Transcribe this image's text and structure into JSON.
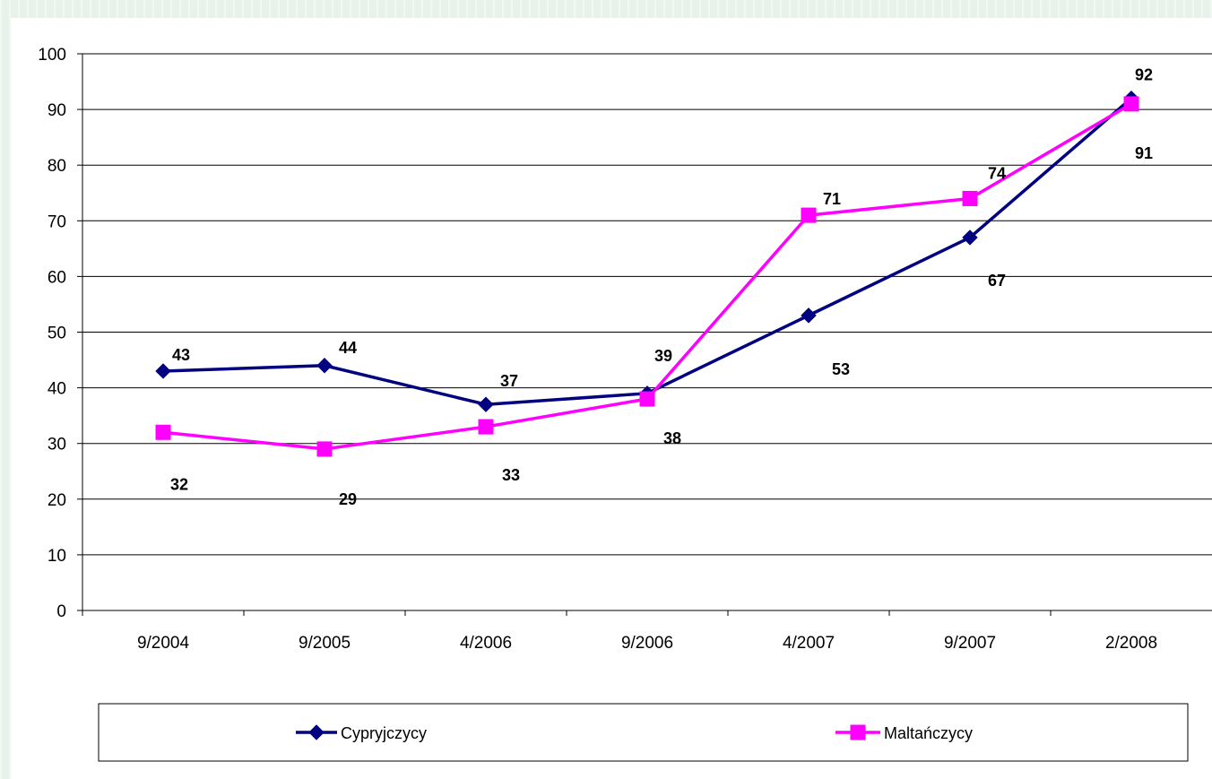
{
  "chart_data": {
    "type": "line",
    "categories": [
      "9/2004",
      "9/2005",
      "4/2006",
      "9/2006",
      "4/2007",
      "9/2007",
      "2/2008"
    ],
    "series": [
      {
        "name": "Cypryjczycy",
        "values": [
          43,
          44,
          37,
          39,
          53,
          67,
          92
        ],
        "color": "#000080",
        "marker": "diamond"
      },
      {
        "name": "Maltańczycy",
        "values": [
          32,
          29,
          33,
          38,
          71,
          74,
          91
        ],
        "color": "#ff00ff",
        "marker": "square"
      }
    ],
    "ylim": [
      0,
      100
    ],
    "yticks": [
      "0",
      "10",
      "20",
      "30",
      "40",
      "50",
      "60",
      "70",
      "80",
      "90",
      "100"
    ],
    "grid": "horizontal",
    "legend": "bottom"
  }
}
